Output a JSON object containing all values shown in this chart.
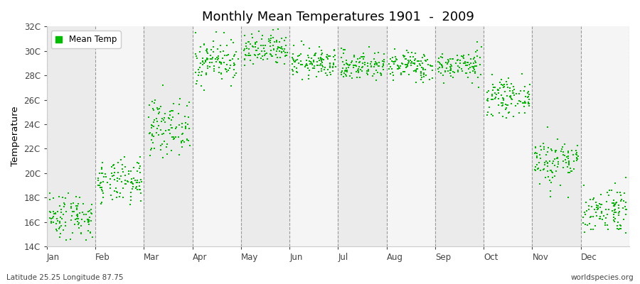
{
  "title": "Monthly Mean Temperatures 1901  -  2009",
  "ylabel": "Temperature",
  "xlabel": "",
  "subtitle_left": "Latitude 25.25 Longitude 87.75",
  "subtitle_right": "worldspecies.org",
  "legend_label": "Mean Temp",
  "marker_color": "#00bb00",
  "background_color": "#ffffff",
  "band_colors": [
    "#ebebeb",
    "#f5f5f5"
  ],
  "ylim": [
    14,
    32
  ],
  "yticks": [
    14,
    16,
    18,
    20,
    22,
    24,
    26,
    28,
    30,
    32
  ],
  "ytick_labels": [
    "14C",
    "16C",
    "18C",
    "20C",
    "22C",
    "24C",
    "26C",
    "28C",
    "30C",
    "32C"
  ],
  "month_names": [
    "Jan",
    "Feb",
    "Mar",
    "Apr",
    "May",
    "Jun",
    "Jul",
    "Aug",
    "Sep",
    "Oct",
    "Nov",
    "Dec"
  ],
  "n_years": 109,
  "monthly_mean": [
    16.5,
    19.2,
    23.8,
    29.2,
    30.0,
    29.0,
    28.8,
    28.8,
    28.8,
    26.2,
    21.0,
    17.0
  ],
  "monthly_std": [
    1.0,
    0.9,
    1.1,
    0.9,
    0.7,
    0.6,
    0.6,
    0.6,
    0.6,
    0.7,
    1.0,
    1.0
  ],
  "seed": 42
}
